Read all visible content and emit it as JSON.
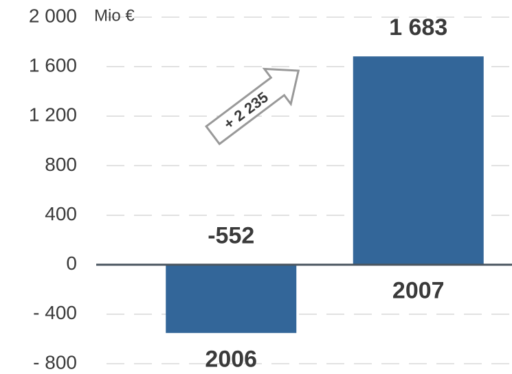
{
  "chart_data": {
    "type": "bar",
    "y_axis_label": "Mio €",
    "annotation": "+ 2 235",
    "categories": [
      "2006",
      "2007"
    ],
    "values": [
      -552,
      1683
    ],
    "value_labels": [
      "-552",
      "1 683"
    ],
    "color": "#336699",
    "ylim": [
      -800,
      2000
    ],
    "yticks": [
      {
        "value": -800,
        "label": "- 800"
      },
      {
        "value": -400,
        "label": "- 400"
      },
      0,
      400,
      800,
      {
        "value": 1200,
        "label": "1 200"
      },
      {
        "value": 1600,
        "label": "1 600"
      },
      {
        "value": 2000,
        "label": "2 000"
      }
    ],
    "grid": true
  }
}
